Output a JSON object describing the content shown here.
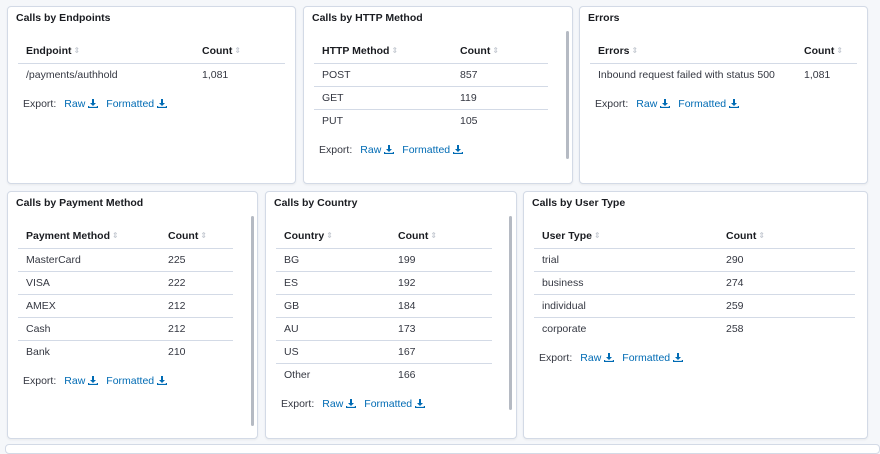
{
  "panels": {
    "endpoints": {
      "title": "Calls by Endpoints",
      "columns": [
        "Endpoint",
        "Count"
      ],
      "rows": [
        [
          "/payments/authhold",
          "1,081"
        ]
      ]
    },
    "http_method": {
      "title": "Calls by HTTP Method",
      "columns": [
        "HTTP Method",
        "Count"
      ],
      "rows": [
        [
          "POST",
          "857"
        ],
        [
          "GET",
          "119"
        ],
        [
          "PUT",
          "105"
        ]
      ]
    },
    "errors": {
      "title": "Errors",
      "columns": [
        "Errors",
        "Count"
      ],
      "rows": [
        [
          "Inbound request failed with status 500",
          "1,081"
        ]
      ]
    },
    "payment_method": {
      "title": "Calls by Payment Method",
      "columns": [
        "Payment Method",
        "Count"
      ],
      "rows": [
        [
          "MasterCard",
          "225"
        ],
        [
          "VISA",
          "222"
        ],
        [
          "AMEX",
          "212"
        ],
        [
          "Cash",
          "212"
        ],
        [
          "Bank",
          "210"
        ]
      ]
    },
    "country": {
      "title": "Calls by Country",
      "columns": [
        "Country",
        "Count"
      ],
      "rows": [
        [
          "BG",
          "199"
        ],
        [
          "ES",
          "192"
        ],
        [
          "GB",
          "184"
        ],
        [
          "AU",
          "173"
        ],
        [
          "US",
          "167"
        ],
        [
          "Other",
          "166"
        ]
      ]
    },
    "user_type": {
      "title": "Calls by User Type",
      "columns": [
        "User Type",
        "Count"
      ],
      "rows": [
        [
          "trial",
          "290"
        ],
        [
          "business",
          "274"
        ],
        [
          "individual",
          "259"
        ],
        [
          "corporate",
          "258"
        ]
      ]
    }
  },
  "export": {
    "label": "Export:",
    "raw": "Raw",
    "formatted": "Formatted"
  },
  "icons": {
    "sort": "sort-icon",
    "download": "download-icon"
  },
  "colors": {
    "link": "#006bb4",
    "border": "#d3dae6",
    "background": "#f5f7fa"
  }
}
